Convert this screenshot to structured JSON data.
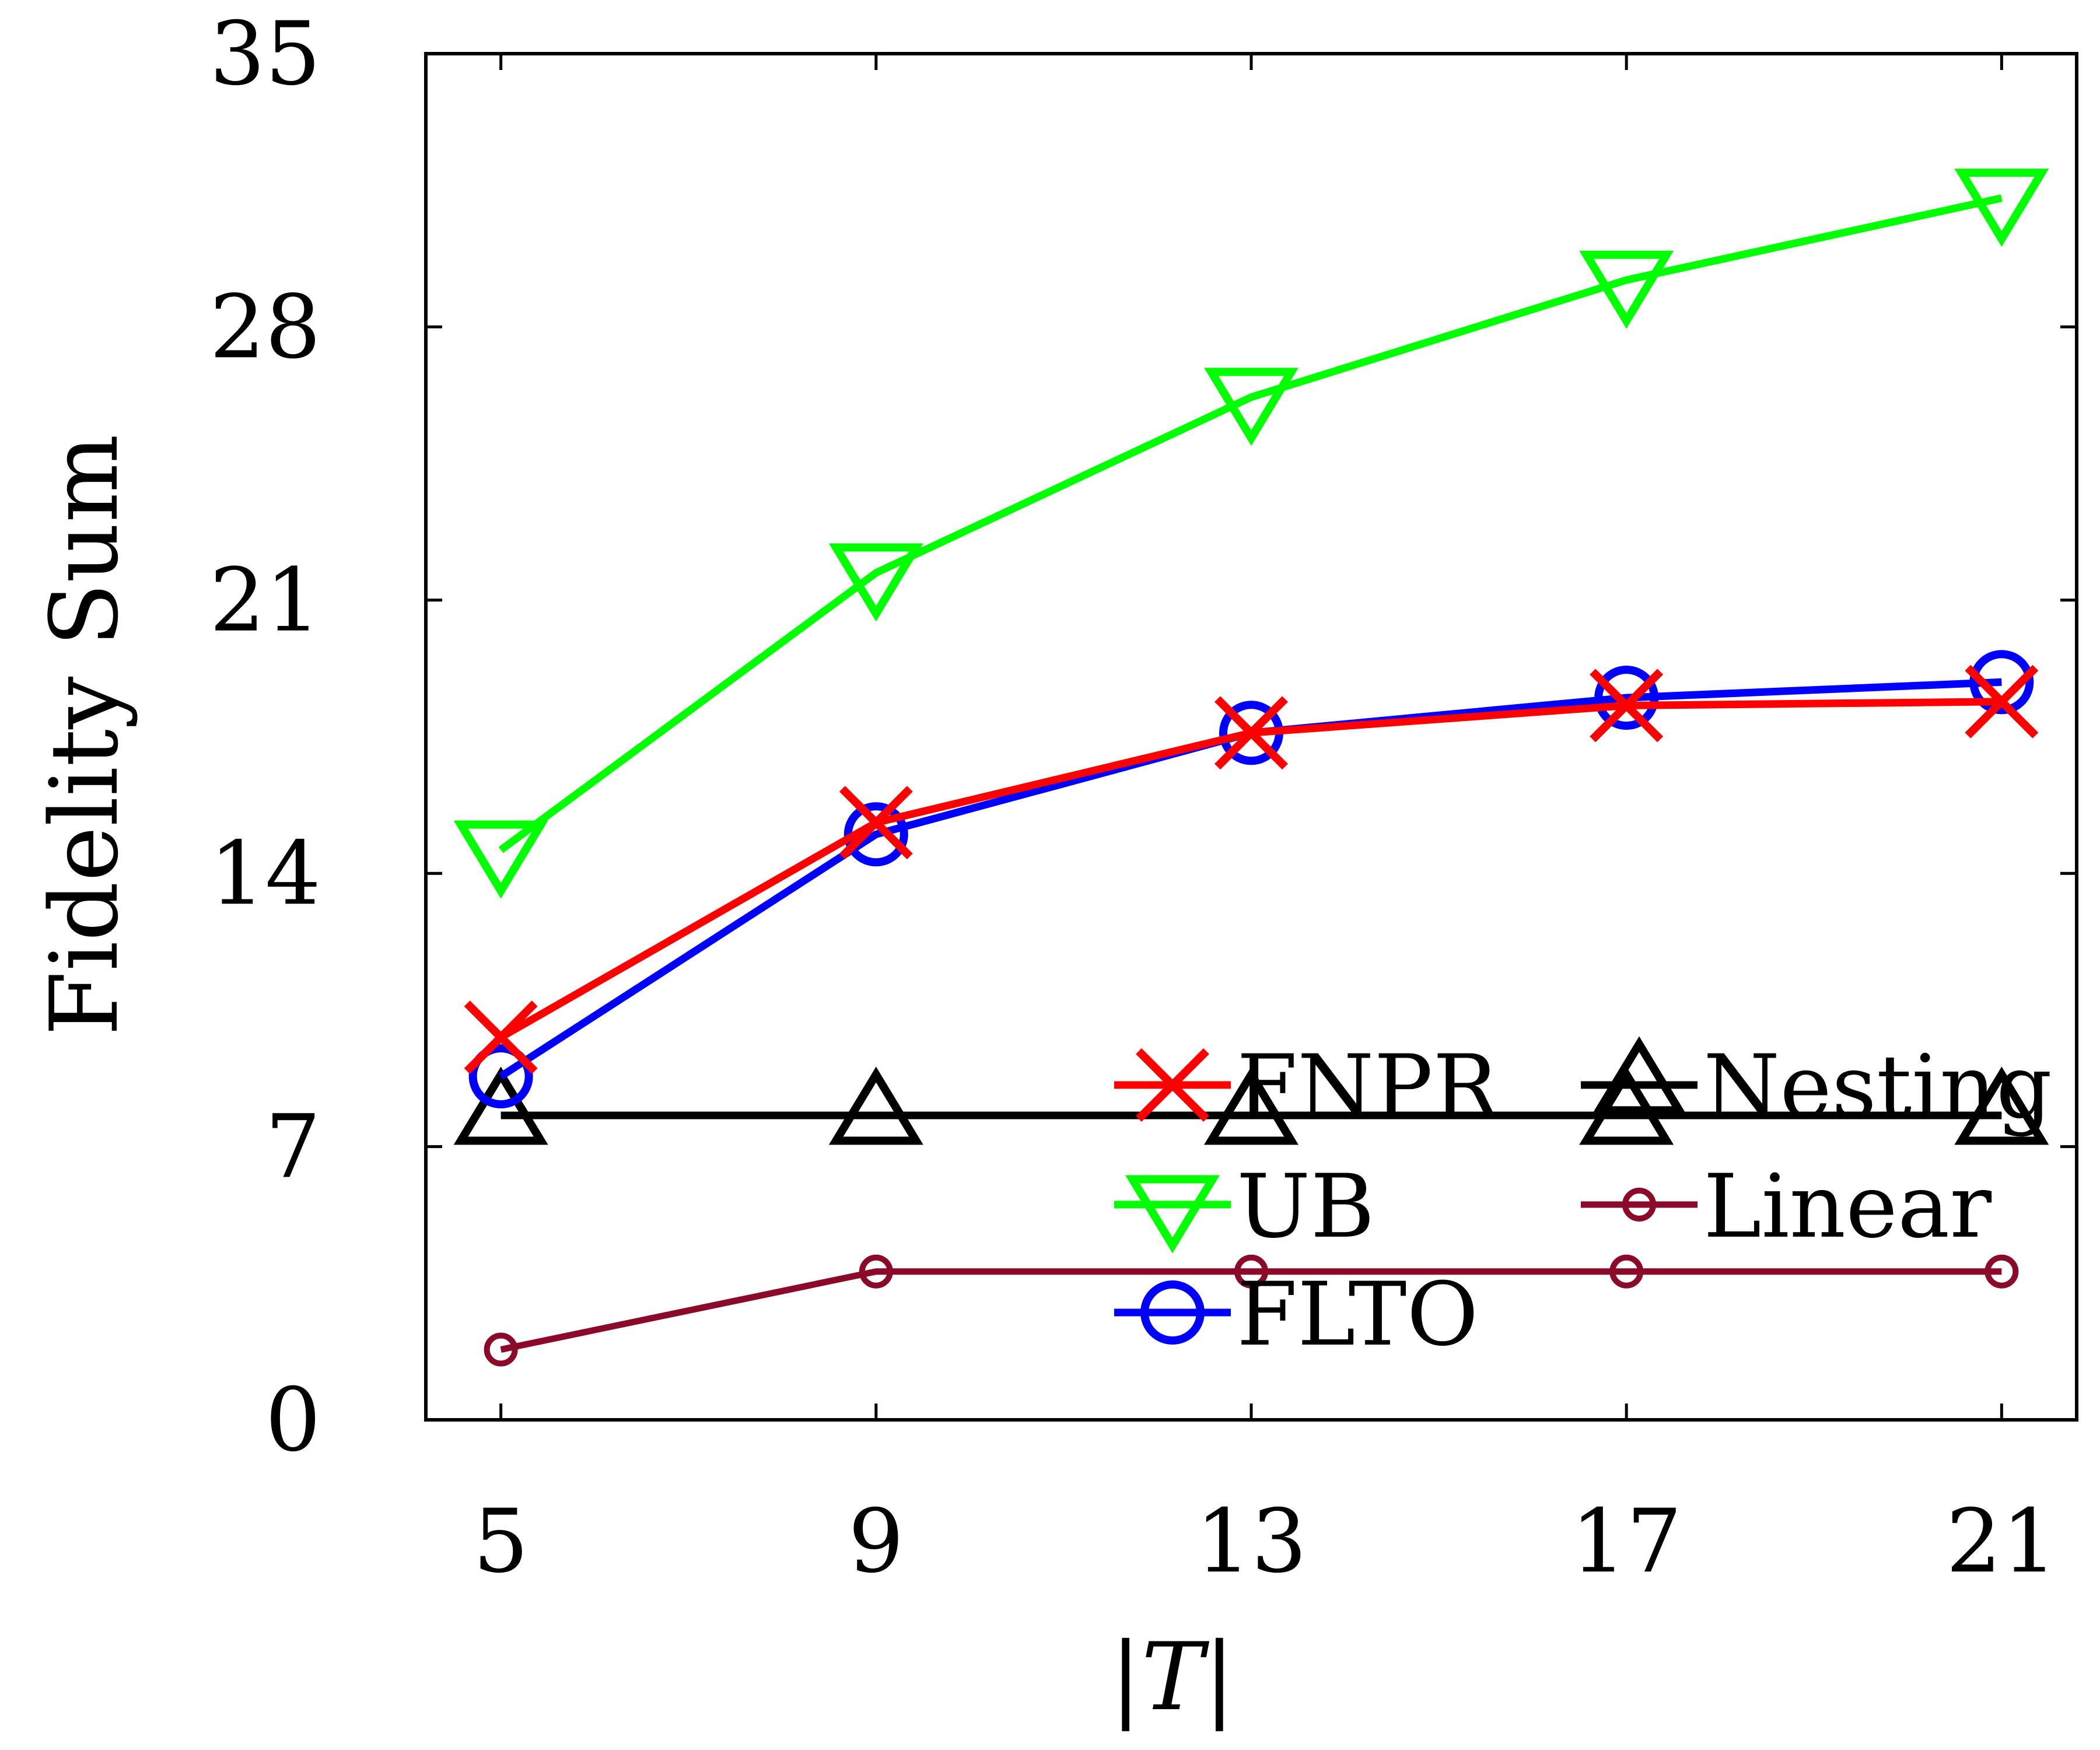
{
  "chart_data": {
    "type": "line",
    "title": "",
    "xlabel": "|T|",
    "ylabel": "Fidelity Sum",
    "x": [
      5,
      9,
      13,
      17,
      21
    ],
    "xlim": [
      4.2,
      21.8
    ],
    "ylim": [
      0,
      35
    ],
    "xticks": [
      "5",
      "9",
      "13",
      "17",
      "21"
    ],
    "yticks": [
      "0",
      "7",
      "14",
      "21",
      "28",
      "35"
    ],
    "grid": false,
    "legend_position": "bottom-right",
    "series": [
      {
        "name": "FNPR",
        "marker": "x",
        "color": "#ff0000",
        "values": [
          9.8,
          15.3,
          17.6,
          18.3,
          18.4
        ]
      },
      {
        "name": "Nesting",
        "marker": "triangle-up",
        "color": "#000000",
        "values": [
          7.8,
          7.8,
          7.8,
          7.8,
          7.8
        ]
      },
      {
        "name": "UB",
        "marker": "triangle-down",
        "color": "#00ff00",
        "values": [
          14.6,
          21.7,
          26.2,
          29.2,
          31.3
        ]
      },
      {
        "name": "Linear",
        "marker": "small-circle",
        "color": "#8b0a2a",
        "values": [
          1.8,
          3.8,
          3.8,
          3.8,
          3.8
        ]
      },
      {
        "name": "FLTO",
        "marker": "circle",
        "color": "#0000ff",
        "values": [
          8.8,
          15.0,
          17.6,
          18.5,
          18.9
        ]
      }
    ]
  }
}
